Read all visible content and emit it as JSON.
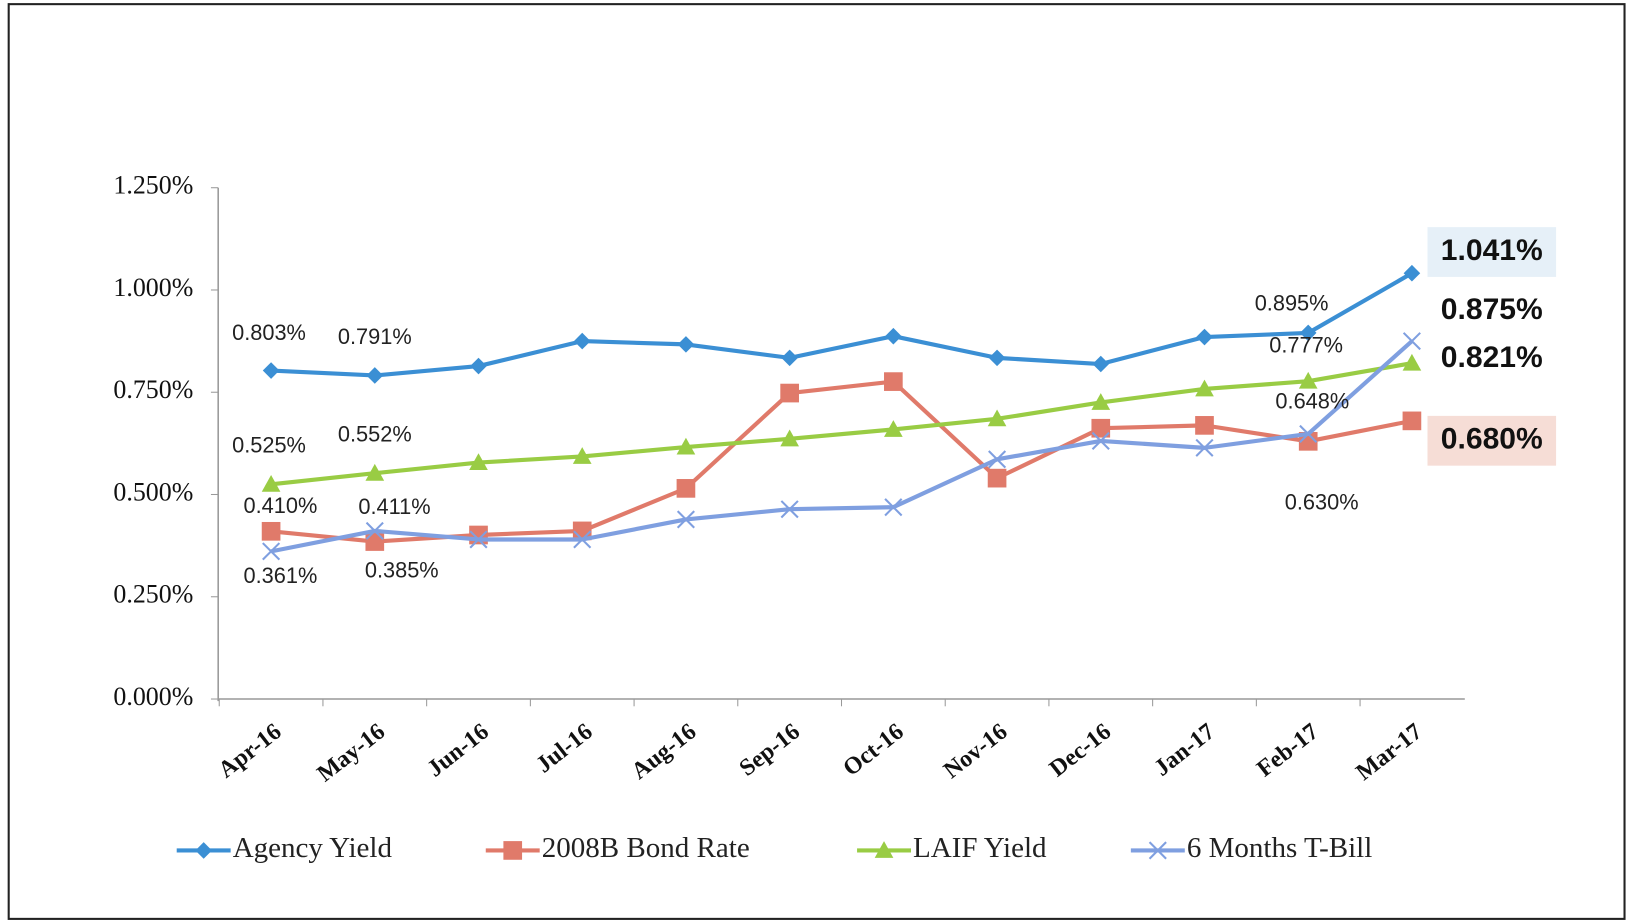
{
  "chart_data": {
    "type": "line",
    "categories": [
      "Apr-16",
      "May-16",
      "Jun-16",
      "Jul-16",
      "Aug-16",
      "Sep-16",
      "Oct-16",
      "Nov-16",
      "Dec-16",
      "Jan-17",
      "Feb-17",
      "Mar-17"
    ],
    "series": [
      {
        "name": "Agency Yield",
        "color": "#3b8fd4",
        "marker": "diamond",
        "values": [
          0.803,
          0.791,
          0.814,
          0.875,
          0.867,
          0.834,
          0.887,
          0.834,
          0.819,
          0.885,
          0.895,
          1.041
        ],
        "value_labels": [
          "0.803%",
          "0.791%",
          null,
          null,
          null,
          null,
          null,
          null,
          null,
          null,
          "0.895%",
          "1.041%"
        ]
      },
      {
        "name": "2008B Bond Rate",
        "color": "#e07a6a",
        "marker": "square",
        "values": [
          0.41,
          0.385,
          0.401,
          0.411,
          0.515,
          0.748,
          0.776,
          0.54,
          0.662,
          0.669,
          0.63,
          0.68
        ],
        "value_labels": [
          "0.410%",
          "0.385%",
          null,
          null,
          null,
          null,
          null,
          null,
          null,
          null,
          "0.630%",
          "0.680%"
        ]
      },
      {
        "name": "LAIF Yield",
        "color": "#99cc44",
        "marker": "triangle",
        "values": [
          0.525,
          0.552,
          0.578,
          0.593,
          0.616,
          0.636,
          0.659,
          0.685,
          0.725,
          0.758,
          0.777,
          0.821
        ],
        "value_labels": [
          "0.525%",
          "0.552%",
          null,
          null,
          null,
          null,
          null,
          null,
          null,
          null,
          "0.777%",
          "0.821%"
        ]
      },
      {
        "name": "6 Months T-Bill",
        "color": "#7f9fe0",
        "marker": "x",
        "values": [
          0.361,
          0.411,
          0.39,
          0.39,
          0.439,
          0.464,
          0.469,
          0.586,
          0.631,
          0.614,
          0.648,
          0.875
        ],
        "value_labels": [
          "0.361%",
          "0.411%",
          null,
          null,
          null,
          null,
          null,
          null,
          null,
          null,
          "0.648%",
          "0.875%"
        ]
      }
    ],
    "ylim": [
      0,
      1.25
    ],
    "yticks": [
      {
        "value": 0,
        "label": "0.000%"
      },
      {
        "value": 0.25,
        "label": "0.250%"
      },
      {
        "value": 0.5,
        "label": "0.500%"
      },
      {
        "value": 0.75,
        "label": "0.750%"
      },
      {
        "value": 1.0,
        "label": "1.000%"
      },
      {
        "value": 1.25,
        "label": "1.250%"
      }
    ],
    "legend": "bottom"
  }
}
